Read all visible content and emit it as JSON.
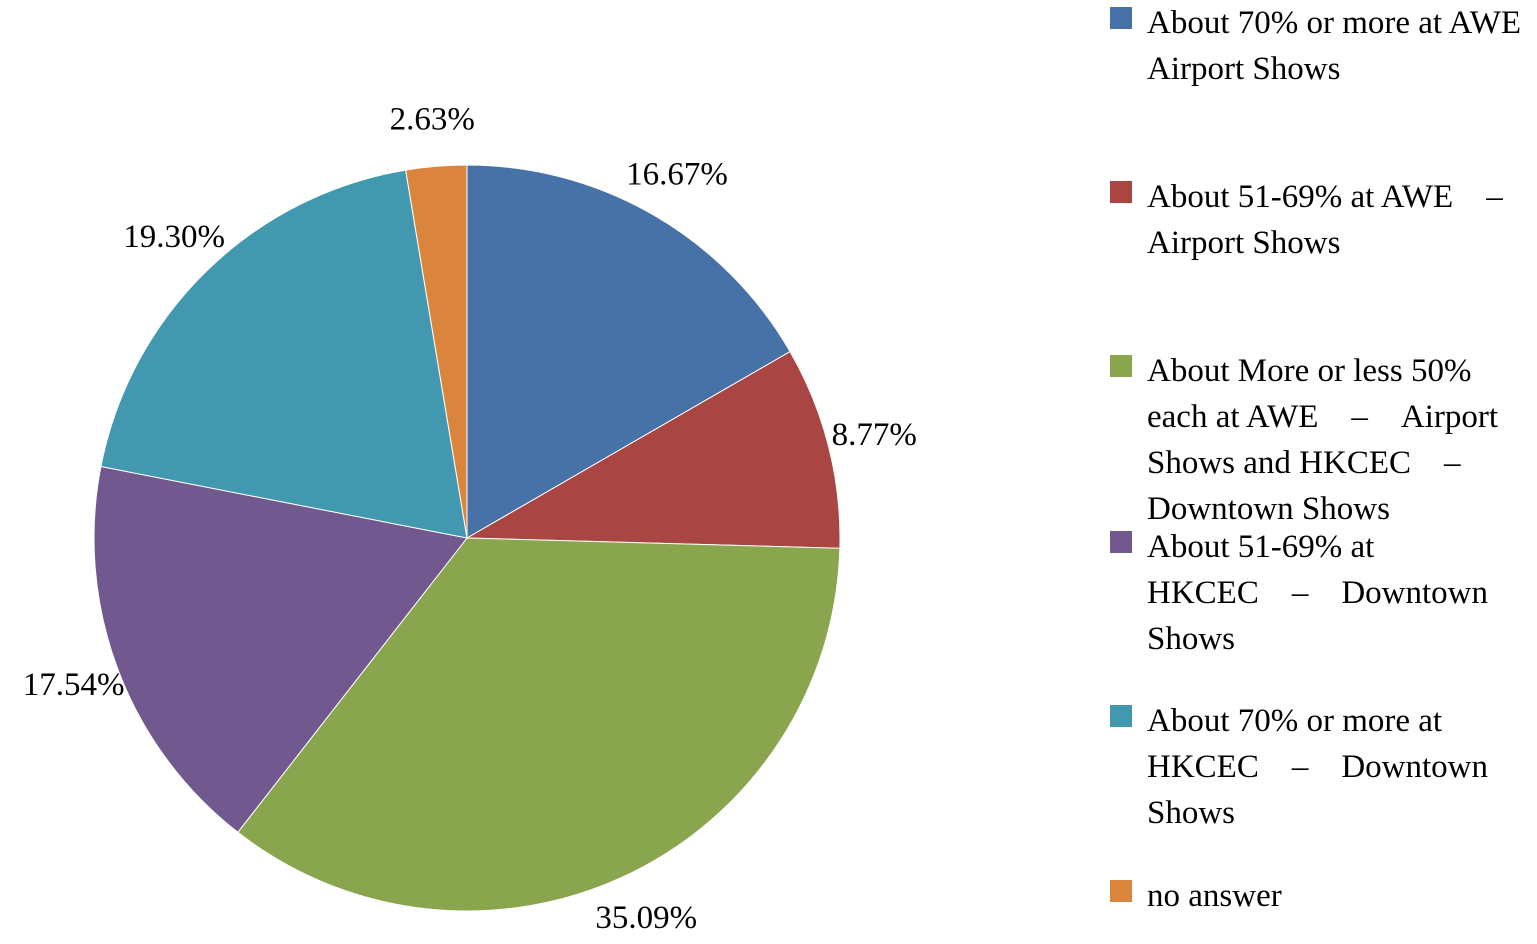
{
  "chart_data": {
    "type": "pie",
    "title": "",
    "start_angle_deg": 0,
    "direction": "clockwise",
    "legend_position": "right",
    "slices": [
      {
        "label": "About 70% or more at AWE　Airport Shows",
        "value": 16.67,
        "value_label": "16.67%",
        "color": "#4672A8"
      },
      {
        "label": "About 51-69% at AWE　–　Airport Shows",
        "value": 8.77,
        "value_label": "8.77%",
        "color": "#A94644"
      },
      {
        "label": "About More or less 50% each at AWE　–　Airport Shows and HKCEC　–　Downtown Shows",
        "value": 35.09,
        "value_label": "35.09%",
        "color": "#89A54E"
      },
      {
        "label": "About 51-69% at HKCEC　–　Downtown Shows",
        "value": 17.54,
        "value_label": "17.54%",
        "color": "#71588F"
      },
      {
        "label": "About 70% or more at HKCEC　–　Downtown Shows",
        "value": 19.3,
        "value_label": "19.30%",
        "color": "#4198AF"
      },
      {
        "label": "no answer",
        "value": 2.63,
        "value_label": "2.63%",
        "color": "#DB843D"
      }
    ]
  }
}
